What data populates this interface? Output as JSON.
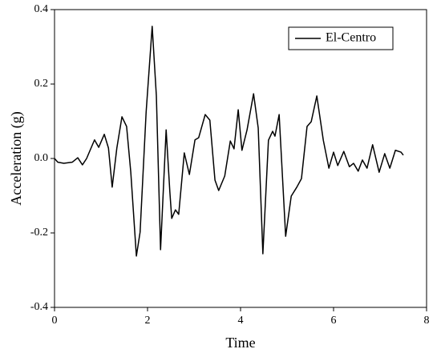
{
  "chart_data": {
    "type": "line",
    "xlabel": "Time",
    "ylabel": "Acceleration (g)",
    "x": [
      0,
      0.07,
      0.2,
      0.38,
      0.5,
      0.6,
      0.69,
      0.86,
      0.95,
      1.07,
      1.16,
      1.24,
      1.34,
      1.45,
      1.55,
      1.64,
      1.76,
      1.84,
      1.97,
      2.1,
      2.19,
      2.28,
      2.4,
      2.48,
      2.52,
      2.6,
      2.67,
      2.79,
      2.9,
      3.02,
      3.1,
      3.24,
      3.34,
      3.45,
      3.53,
      3.66,
      3.78,
      3.86,
      3.95,
      4.03,
      4.14,
      4.28,
      4.38,
      4.48,
      4.6,
      4.69,
      4.74,
      4.83,
      4.97,
      5.09,
      5.21,
      5.31,
      5.43,
      5.52,
      5.64,
      5.78,
      5.9,
      6.0,
      6.09,
      6.22,
      6.34,
      6.43,
      6.53,
      6.62,
      6.72,
      6.84,
      6.98,
      7.1,
      7.21,
      7.33,
      7.45,
      7.5
    ],
    "series": [
      {
        "name": "El-Centro",
        "color": "#000000",
        "values": [
          0,
          -0.01,
          -0.013,
          -0.01,
          0.002,
          -0.017,
          0,
          0.05,
          0.03,
          0.065,
          0.028,
          -0.077,
          0.028,
          0.112,
          0.086,
          -0.037,
          -0.262,
          -0.198,
          0.125,
          0.355,
          0.168,
          -0.245,
          0.077,
          -0.09,
          -0.161,
          -0.138,
          -0.15,
          0.015,
          -0.043,
          0.05,
          0.056,
          0.118,
          0.103,
          -0.058,
          -0.086,
          -0.047,
          0.047,
          0.026,
          0.131,
          0.022,
          0.077,
          0.174,
          0.082,
          -0.256,
          0.049,
          0.073,
          0.06,
          0.118,
          -0.209,
          -0.101,
          -0.077,
          -0.054,
          0.086,
          0.099,
          0.168,
          0.049,
          -0.026,
          0.017,
          -0.019,
          0.019,
          -0.022,
          -0.013,
          -0.034,
          -0.004,
          -0.026,
          0.037,
          -0.037,
          0.013,
          -0.026,
          0.022,
          0.017,
          0.009
        ]
      }
    ],
    "xlim": [
      0,
      8
    ],
    "xticks": [
      0,
      2,
      4,
      6,
      8
    ],
    "ylim": [
      -0.4,
      0.4
    ],
    "yticks": [
      -0.4,
      -0.2,
      {
        "value": 0,
        "label": "0.0"
      },
      0.2,
      0.4
    ],
    "legend": "upper right",
    "grid": false
  }
}
